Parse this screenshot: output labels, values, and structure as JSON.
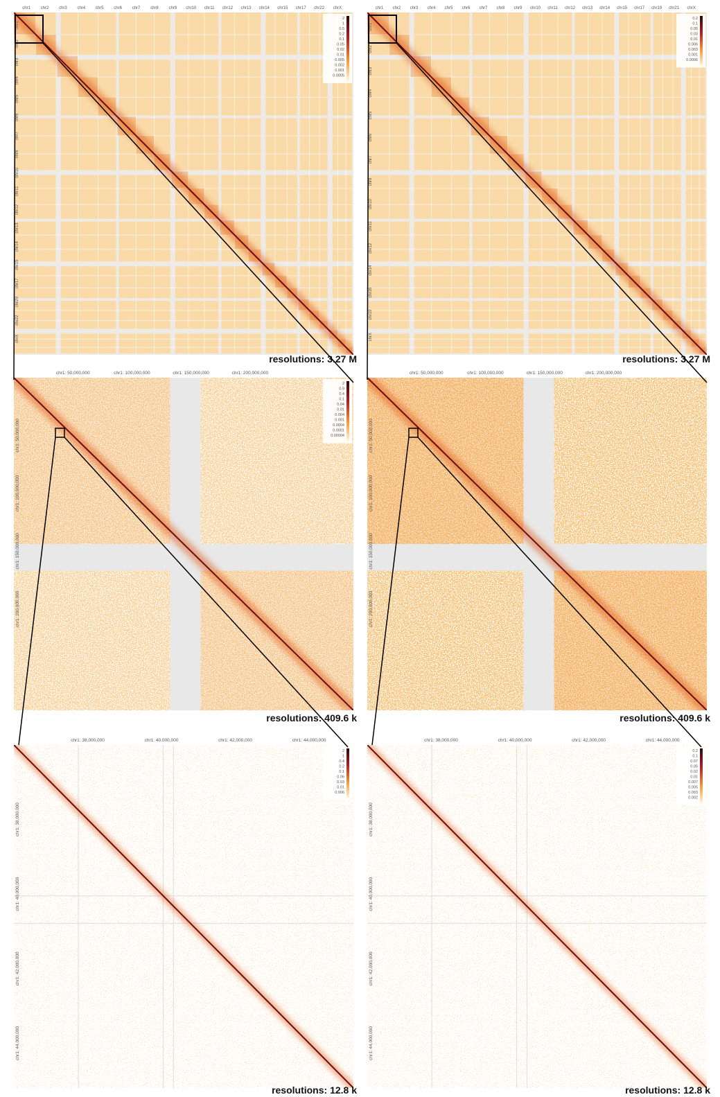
{
  "panels": [
    {
      "top_labels": [
        "chr1",
        "chr2",
        "chr3",
        "chr4",
        "chr5",
        "chr6",
        "chr7",
        "chr8",
        "chr9",
        "chr10",
        "chr11",
        "chr12",
        "chr13",
        "chr14",
        "chr15",
        "chr17",
        "chr22",
        "chrX"
      ],
      "left_labels": [
        "chr1",
        "chr2",
        "chr3",
        "chr4",
        "chr5",
        "chr6",
        "chr7",
        "chr8",
        "chr10",
        "chr11",
        "chr12",
        "chr13",
        "chr14",
        "chr15",
        "chr17",
        "chr20",
        "chr22",
        "chrX"
      ],
      "legend": [
        "2",
        "1",
        "0.5",
        "0.2",
        "0.1",
        "0.05",
        "0.02",
        "0.01",
        "0.005",
        "0.002",
        "0.001",
        "0.0005"
      ],
      "caption": "resolutions: 3.27 M"
    },
    {
      "top_labels": [
        "chr1",
        "chr2",
        "chr3",
        "chr4",
        "chr5",
        "chr6",
        "chr7",
        "chr8",
        "chr9",
        "chr10",
        "chr11",
        "chr12",
        "chr13",
        "chr14",
        "chr15",
        "chr17",
        "chr19",
        "chr21",
        "chrX"
      ],
      "left_labels": [
        "chr1",
        "chr2",
        "chr3",
        "chr4",
        "chr5",
        "chr6",
        "chr7",
        "chr8",
        "chr10",
        "chr11",
        "chr12",
        "chr14",
        "chr16",
        "chr19",
        "chrX"
      ],
      "legend": [
        "0.2",
        "0.1",
        "0.05",
        "0.03",
        "0.01",
        "0.006",
        "0.003",
        "0.001",
        "0.0006"
      ],
      "caption": "resolutions: 3.27 M"
    },
    {
      "top_labels": [
        "chr1: 50,000,000",
        "chr1: 100,000,000",
        "chr1: 150,000,000",
        "chr1: 200,000,000"
      ],
      "left_labels": [
        "chr1: 50,000,000",
        "chr1: 100,000,000",
        "chr1: 150,000,000",
        "chr1: 200,000,000"
      ],
      "legend": [
        "2",
        "0.9",
        "0.4",
        "0.1",
        "0.04",
        "0.01",
        "0.004",
        "0.001",
        "0.0004",
        "0.0001",
        "0.00004"
      ],
      "caption": "resolutions:  409.6 k"
    },
    {
      "top_labels": [
        "chr1: 50,000,000",
        "chr1: 100,000,000",
        "chr1: 150,000,000",
        "chr1: 200,000,000"
      ],
      "left_labels": [
        "chr1: 50,000,000",
        "chr1: 100,000,000",
        "chr1: 150,000,000",
        "chr1: 200,000,000"
      ],
      "legend": [],
      "caption": "resolutions:  409.6 k"
    },
    {
      "top_labels": [
        "chr1: 38,000,000",
        "chr1: 40,000,000",
        "chr1: 42,000,000",
        "chr1: 44,000,000"
      ],
      "left_labels": [
        "chr1: 38,000,000",
        "chr1: 40,000,000",
        "chr1: 42,000,000",
        "chr1: 44,000,000"
      ],
      "legend": [
        "2",
        "1",
        "0.4",
        "0.2",
        "0.1",
        "0.06",
        "0.03",
        "0.01",
        "0.006"
      ],
      "caption": "resolutions: 12.8 k"
    },
    {
      "top_labels": [
        "chr1: 38,000,000",
        "chr1: 40,000,000",
        "chr1: 42,000,000",
        "chr1: 44,000,000"
      ],
      "left_labels": [
        "chr1: 38,000,000",
        "chr1: 40,000,000",
        "chr1: 42,000,000",
        "chr1: 44,000,000"
      ],
      "legend": [
        "0.2",
        "0.1",
        "0.07",
        "0.05",
        "0.02",
        "0.01",
        "0.007",
        "0.005",
        "0.003",
        "0.002"
      ],
      "caption": "resolutions: 12.8 k"
    }
  ]
}
